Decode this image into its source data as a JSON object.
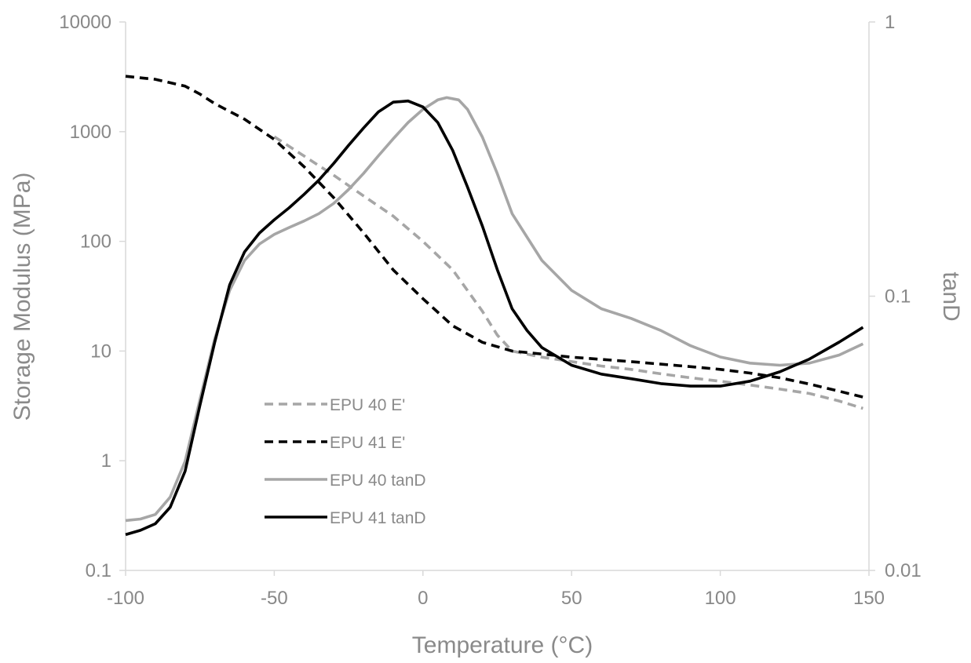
{
  "chart_data": {
    "type": "line",
    "xlabel": "Temperature (°C)",
    "ylabel_left": "Storage Modulus (MPa)",
    "ylabel_right": "tanD",
    "xlim": [
      -100,
      150
    ],
    "ylim_left": [
      0.1,
      10000
    ],
    "ylim_right": [
      0.01,
      1
    ],
    "y_scale_left": "log",
    "y_scale_right": "log",
    "x_ticks": [
      -100,
      -50,
      0,
      50,
      100,
      150
    ],
    "x_tick_labels": [
      "-100",
      "-50",
      "0",
      "50",
      "100",
      "150"
    ],
    "y_left_ticks": [
      0.1,
      1,
      10,
      100,
      1000,
      10000
    ],
    "y_left_tick_labels": [
      "0.1",
      "1",
      "10",
      "100",
      "1000",
      "10000"
    ],
    "y_right_ticks": [
      0.01,
      0.1,
      1
    ],
    "y_right_tick_labels": [
      "0.01",
      "0.1",
      "1"
    ],
    "grid": false,
    "legend_position": "bottom-left",
    "series": [
      {
        "name": "EPU 40 E'",
        "axis": "left",
        "color": "#a6a6a6",
        "dash": "dashed",
        "x": [
          -50,
          -40,
          -30,
          -20,
          -10,
          0,
          10,
          20,
          25,
          30,
          40,
          50,
          60,
          70,
          80,
          90,
          100,
          110,
          120,
          130,
          140,
          148
        ],
        "y": [
          900,
          600,
          400,
          260,
          170,
          100,
          55,
          23,
          14,
          10,
          8.8,
          8,
          7.3,
          6.8,
          6.2,
          5.7,
          5.3,
          4.9,
          4.5,
          4.1,
          3.5,
          3
        ]
      },
      {
        "name": "EPU 41 E'",
        "axis": "left",
        "color": "#000000",
        "dash": "dashed",
        "x": [
          -100,
          -90,
          -80,
          -75,
          -70,
          -60,
          -50,
          -40,
          -30,
          -20,
          -10,
          0,
          10,
          20,
          30,
          40,
          50,
          60,
          70,
          80,
          90,
          100,
          110,
          120,
          130,
          140,
          148
        ],
        "y": [
          3200,
          3000,
          2600,
          2200,
          1800,
          1300,
          850,
          480,
          250,
          120,
          55,
          30,
          17,
          12,
          10,
          9.4,
          8.8,
          8.4,
          8,
          7.6,
          7.2,
          6.8,
          6.3,
          5.7,
          5,
          4.3,
          3.8
        ]
      },
      {
        "name": "EPU 40 tanD",
        "axis": "right",
        "color": "#a6a6a6",
        "dash": "solid",
        "x": [
          -100,
          -95,
          -90,
          -85,
          -80,
          -75,
          -70,
          -65,
          -60,
          -55,
          -50,
          -45,
          -40,
          -35,
          -30,
          -25,
          -20,
          -15,
          -10,
          -5,
          0,
          5,
          8,
          12,
          15,
          20,
          25,
          30,
          40,
          50,
          60,
          70,
          80,
          90,
          100,
          110,
          120,
          130,
          140,
          148
        ],
        "y": [
          0.0152,
          0.0154,
          0.016,
          0.0185,
          0.025,
          0.042,
          0.07,
          0.105,
          0.135,
          0.155,
          0.168,
          0.178,
          0.188,
          0.2,
          0.218,
          0.245,
          0.28,
          0.325,
          0.375,
          0.43,
          0.48,
          0.52,
          0.53,
          0.52,
          0.48,
          0.38,
          0.28,
          0.2,
          0.135,
          0.105,
          0.09,
          0.083,
          0.075,
          0.066,
          0.06,
          0.057,
          0.056,
          0.057,
          0.061,
          0.067
        ]
      },
      {
        "name": "EPU 41 tanD",
        "axis": "right",
        "color": "#000000",
        "dash": "solid",
        "x": [
          -100,
          -95,
          -90,
          -85,
          -80,
          -75,
          -70,
          -65,
          -60,
          -55,
          -50,
          -45,
          -40,
          -35,
          -30,
          -25,
          -20,
          -15,
          -10,
          -5,
          0,
          5,
          10,
          15,
          20,
          25,
          30,
          35,
          40,
          50,
          60,
          70,
          80,
          90,
          100,
          110,
          120,
          130,
          140,
          148
        ],
        "y": [
          0.0135,
          0.014,
          0.0148,
          0.017,
          0.023,
          0.04,
          0.068,
          0.11,
          0.145,
          0.17,
          0.19,
          0.21,
          0.235,
          0.265,
          0.305,
          0.355,
          0.41,
          0.47,
          0.51,
          0.515,
          0.49,
          0.43,
          0.34,
          0.25,
          0.18,
          0.125,
          0.09,
          0.075,
          0.065,
          0.056,
          0.052,
          0.05,
          0.048,
          0.047,
          0.047,
          0.049,
          0.053,
          0.059,
          0.068,
          0.077
        ]
      }
    ]
  }
}
